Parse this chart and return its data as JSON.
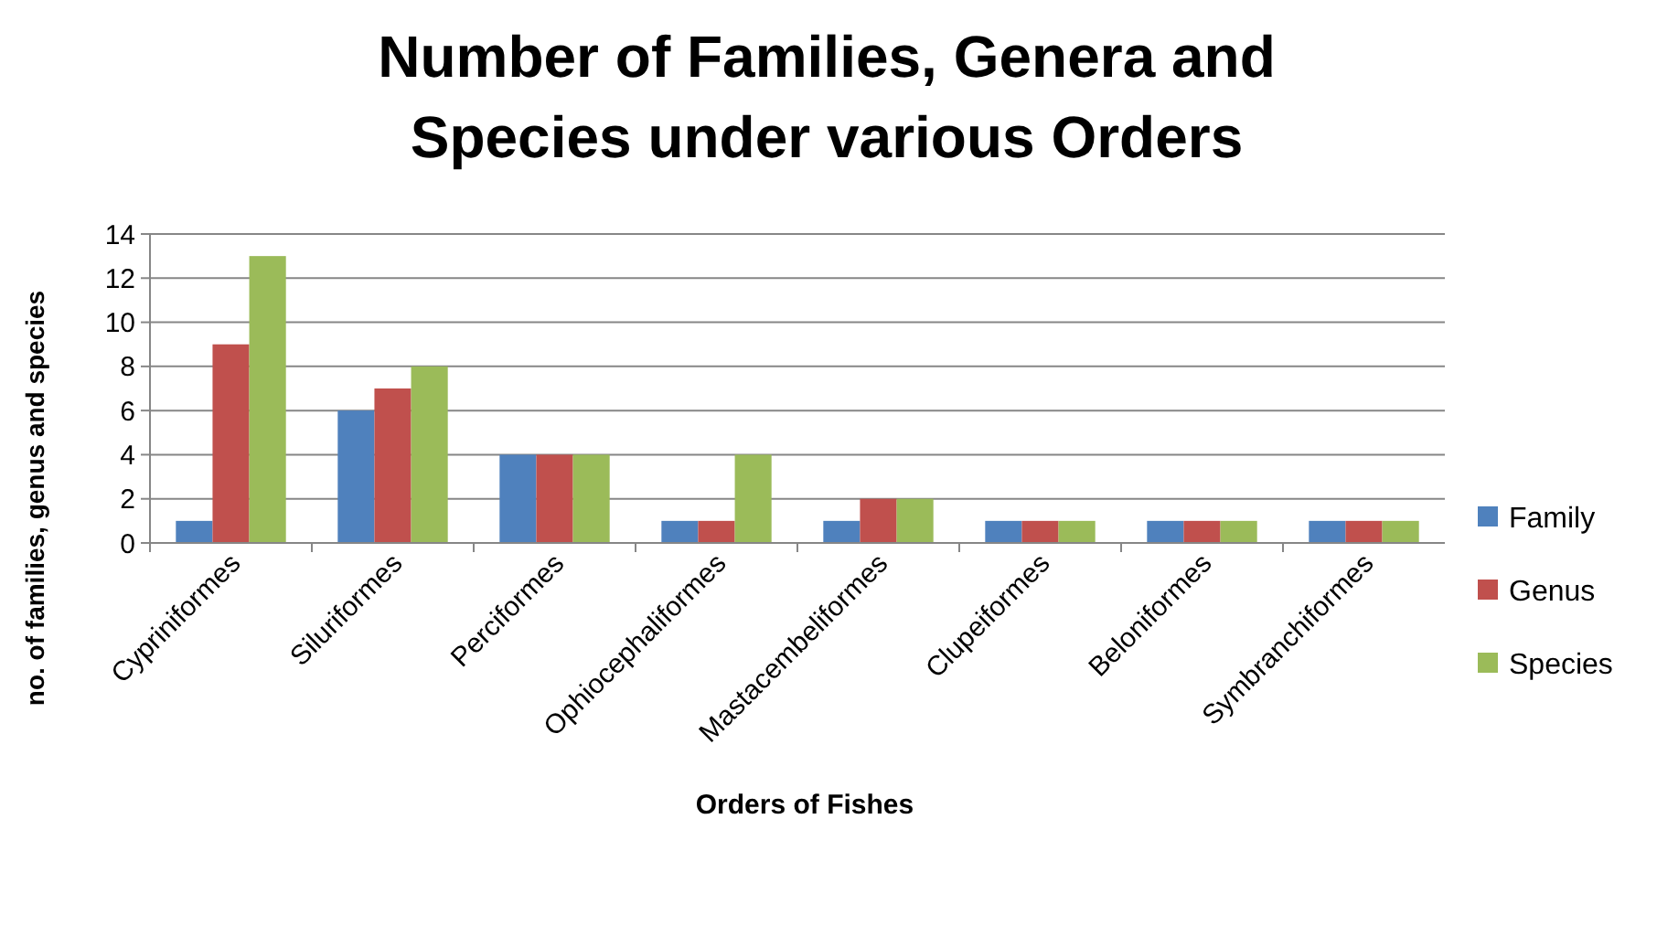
{
  "chart_data": {
    "type": "bar",
    "title": "Number of Families, Genera and Species under various Orders",
    "xlabel": "Orders of Fishes",
    "ylabel": "no. of families, genus and species",
    "categories": [
      "Cypriniformes",
      "Siluriformes",
      "Perciformes",
      "Ophiocephaliformes",
      "Mastacembeliformes",
      "Clupeiformes",
      "Beloniformes",
      "Symbranchiformes"
    ],
    "series": [
      {
        "name": "Family",
        "color": "#4f81bd",
        "values": [
          1,
          6,
          4,
          1,
          1,
          1,
          1,
          1
        ]
      },
      {
        "name": "Genus",
        "color": "#c0504d",
        "values": [
          9,
          7,
          4,
          1,
          2,
          1,
          1,
          1
        ]
      },
      {
        "name": "Species",
        "color": "#9bbb59",
        "values": [
          13,
          8,
          4,
          4,
          2,
          1,
          1,
          1
        ]
      }
    ],
    "ylim": [
      0,
      14
    ],
    "yticks": [
      0,
      2,
      4,
      6,
      8,
      10,
      12,
      14
    ],
    "grid": "y",
    "legend": "right"
  }
}
